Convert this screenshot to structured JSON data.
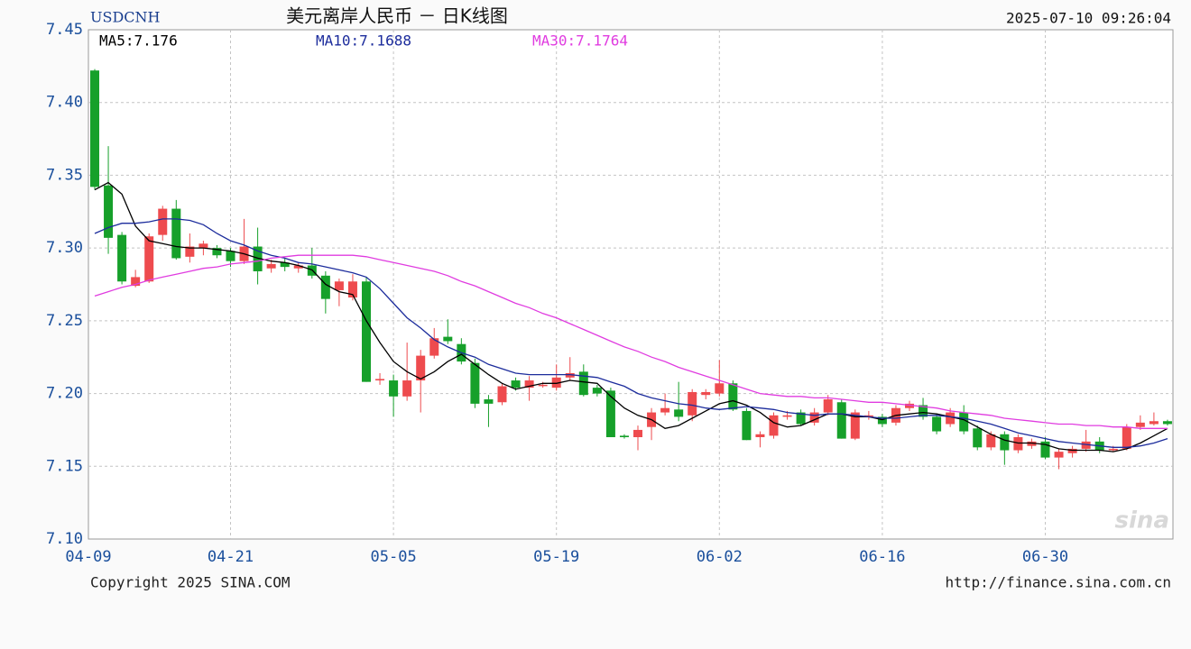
{
  "chart_data": {
    "type": "candlestick",
    "title": "美元离岸人民币 － 日K线图",
    "symbol": "USDCNH",
    "timestamp": "2025-07-10 09:26:04",
    "copyright": "Copyright 2025 SINA.COM",
    "url": "http://finance.sina.com.cn",
    "watermark": "sina",
    "categories": [
      "04-09",
      null,
      null,
      null,
      null,
      null,
      null,
      null,
      null,
      null,
      "04-21",
      null,
      null,
      null,
      null,
      null,
      null,
      null,
      null,
      null,
      null,
      null,
      "05-05",
      null,
      null,
      null,
      null,
      null,
      null,
      null,
      null,
      null,
      null,
      null,
      "05-19",
      null,
      null,
      null,
      null,
      null,
      null,
      null,
      null,
      null,
      null,
      null,
      "06-02",
      null,
      null,
      null,
      null,
      null,
      null,
      null,
      null,
      null,
      null,
      null,
      "06-16",
      null,
      null,
      null,
      null,
      null,
      null,
      null,
      null,
      null,
      null,
      null,
      "06-30",
      null,
      null,
      null,
      null,
      null,
      null,
      null,
      null,
      null
    ],
    "open": [
      7.422,
      7.343,
      7.309,
      7.274,
      7.277,
      7.309,
      7.327,
      7.294,
      7.3,
      7.3,
      7.298,
      7.291,
      7.301,
      7.286,
      7.29,
      7.286,
      7.288,
      7.281,
      7.271,
      7.266,
      7.277,
      7.209,
      7.209,
      7.198,
      7.209,
      7.226,
      7.239,
      7.234,
      7.221,
      7.196,
      7.194,
      7.209,
      7.204,
      7.206,
      7.204,
      7.211,
      7.215,
      7.204,
      7.202,
      7.171,
      7.17,
      7.177,
      7.187,
      7.189,
      7.185,
      7.199,
      7.2,
      7.207,
      7.188,
      7.17,
      7.171,
      7.184,
      7.187,
      7.18,
      7.187,
      7.194,
      7.169,
      7.184,
      7.184,
      7.18,
      7.19,
      7.192,
      7.184,
      7.179,
      7.187,
      7.176,
      7.163,
      7.172,
      7.161,
      7.164,
      7.167,
      7.156,
      7.159,
      7.162,
      7.167,
      7.161,
      7.162,
      7.177,
      7.179,
      7.181
    ],
    "high": [
      7.423,
      7.37,
      7.311,
      7.285,
      7.31,
      7.329,
      7.333,
      7.31,
      7.305,
      7.302,
      7.3,
      7.32,
      7.314,
      7.292,
      7.293,
      7.29,
      7.3,
      7.284,
      7.279,
      7.282,
      7.28,
      7.214,
      7.213,
      7.235,
      7.23,
      7.245,
      7.251,
      7.238,
      7.224,
      7.199,
      7.207,
      7.211,
      7.212,
      7.208,
      7.22,
      7.225,
      7.22,
      7.206,
      7.204,
      7.172,
      7.178,
      7.19,
      7.2,
      7.208,
      7.203,
      7.203,
      7.223,
      7.209,
      7.19,
      7.174,
      7.187,
      7.188,
      7.189,
      7.19,
      7.199,
      7.196,
      7.189,
      7.188,
      7.186,
      7.192,
      7.195,
      7.197,
      7.186,
      7.19,
      7.192,
      7.178,
      7.174,
      7.174,
      7.172,
      7.169,
      7.17,
      7.162,
      7.164,
      7.175,
      7.17,
      7.164,
      7.179,
      7.185,
      7.187,
      7.182
    ],
    "low": [
      7.34,
      7.296,
      7.275,
      7.273,
      7.276,
      7.305,
      7.292,
      7.29,
      7.295,
      7.293,
      7.287,
      7.289,
      7.275,
      7.283,
      7.284,
      7.283,
      7.279,
      7.255,
      7.26,
      7.264,
      7.208,
      7.206,
      7.184,
      7.195,
      7.187,
      7.224,
      7.234,
      7.22,
      7.19,
      7.177,
      7.192,
      7.202,
      7.195,
      7.204,
      7.202,
      7.209,
      7.198,
      7.198,
      7.17,
      7.169,
      7.161,
      7.168,
      7.185,
      7.181,
      7.181,
      7.196,
      7.198,
      7.188,
      7.168,
      7.163,
      7.169,
      7.182,
      7.178,
      7.178,
      7.185,
      7.169,
      7.168,
      7.182,
      7.177,
      7.178,
      7.188,
      7.182,
      7.172,
      7.177,
      7.172,
      7.161,
      7.161,
      7.151,
      7.159,
      7.162,
      7.155,
      7.148,
      7.156,
      7.16,
      7.159,
      7.16,
      7.161,
      7.175,
      7.178,
      7.178
    ],
    "close": [
      7.342,
      7.307,
      7.277,
      7.28,
      7.308,
      7.327,
      7.293,
      7.301,
      7.303,
      7.295,
      7.291,
      7.301,
      7.284,
      7.289,
      7.287,
      7.288,
      7.281,
      7.265,
      7.277,
      7.277,
      7.208,
      7.21,
      7.198,
      7.209,
      7.226,
      7.238,
      7.236,
      7.222,
      7.193,
      7.193,
      7.205,
      7.204,
      7.209,
      7.206,
      7.211,
      7.214,
      7.199,
      7.2,
      7.17,
      7.17,
      7.175,
      7.187,
      7.19,
      7.184,
      7.201,
      7.201,
      7.207,
      7.189,
      7.168,
      7.172,
      7.185,
      7.185,
      7.179,
      7.187,
      7.196,
      7.169,
      7.187,
      7.185,
      7.179,
      7.19,
      7.193,
      7.184,
      7.174,
      7.187,
      7.174,
      7.163,
      7.172,
      7.161,
      7.17,
      7.167,
      7.156,
      7.16,
      7.162,
      7.167,
      7.161,
      7.162,
      7.177,
      7.18,
      7.181,
      7.179
    ],
    "up_color": "#ee4b4e",
    "down_color": "#16a02a",
    "series": [
      {
        "name": "MA5:7.176",
        "color": "#000000",
        "values": [
          7.34,
          7.345,
          7.337,
          7.315,
          7.305,
          7.303,
          7.301,
          7.3,
          7.3,
          7.299,
          7.298,
          7.296,
          7.293,
          7.291,
          7.29,
          7.288,
          7.285,
          7.275,
          7.27,
          7.268,
          7.25,
          7.235,
          7.222,
          7.215,
          7.21,
          7.215,
          7.222,
          7.227,
          7.22,
          7.213,
          7.207,
          7.203,
          7.205,
          7.207,
          7.207,
          7.209,
          7.208,
          7.207,
          7.198,
          7.19,
          7.185,
          7.182,
          7.176,
          7.178,
          7.183,
          7.188,
          7.193,
          7.195,
          7.192,
          7.187,
          7.18,
          7.177,
          7.178,
          7.182,
          7.186,
          7.186,
          7.184,
          7.184,
          7.182,
          7.185,
          7.186,
          7.187,
          7.186,
          7.184,
          7.182,
          7.177,
          7.172,
          7.168,
          7.166,
          7.166,
          7.165,
          7.162,
          7.161,
          7.161,
          7.161,
          7.16,
          7.162,
          7.166,
          7.171,
          7.176
        ]
      },
      {
        "name": "MA10:7.1688",
        "color": "#1c2c9c",
        "values": [
          7.31,
          7.314,
          7.317,
          7.317,
          7.318,
          7.32,
          7.32,
          7.319,
          7.316,
          7.31,
          7.305,
          7.302,
          7.298,
          7.295,
          7.293,
          7.29,
          7.289,
          7.287,
          7.285,
          7.283,
          7.28,
          7.272,
          7.262,
          7.252,
          7.245,
          7.237,
          7.232,
          7.228,
          7.225,
          7.22,
          7.217,
          7.214,
          7.213,
          7.213,
          7.213,
          7.213,
          7.212,
          7.211,
          7.208,
          7.205,
          7.2,
          7.197,
          7.195,
          7.193,
          7.192,
          7.19,
          7.189,
          7.19,
          7.191,
          7.19,
          7.189,
          7.187,
          7.186,
          7.185,
          7.186,
          7.186,
          7.185,
          7.184,
          7.183,
          7.183,
          7.184,
          7.185,
          7.185,
          7.184,
          7.183,
          7.181,
          7.179,
          7.176,
          7.173,
          7.171,
          7.169,
          7.167,
          7.166,
          7.165,
          7.164,
          7.163,
          7.163,
          7.164,
          7.166,
          7.169
        ]
      },
      {
        "name": "MA30:7.1764",
        "color": "#e03ce0",
        "values": [
          7.267,
          7.27,
          7.273,
          7.275,
          7.278,
          7.28,
          7.282,
          7.284,
          7.286,
          7.287,
          7.289,
          7.29,
          7.291,
          7.293,
          7.294,
          7.295,
          7.295,
          7.295,
          7.295,
          7.295,
          7.294,
          7.292,
          7.29,
          7.288,
          7.286,
          7.284,
          7.281,
          7.277,
          7.274,
          7.27,
          7.266,
          7.262,
          7.259,
          7.255,
          7.252,
          7.248,
          7.244,
          7.24,
          7.236,
          7.232,
          7.229,
          7.225,
          7.222,
          7.218,
          7.215,
          7.212,
          7.209,
          7.206,
          7.203,
          7.2,
          7.199,
          7.198,
          7.198,
          7.197,
          7.197,
          7.196,
          7.195,
          7.194,
          7.194,
          7.193,
          7.192,
          7.191,
          7.19,
          7.188,
          7.187,
          7.186,
          7.185,
          7.183,
          7.182,
          7.181,
          7.18,
          7.179,
          7.179,
          7.178,
          7.178,
          7.177,
          7.177,
          7.176,
          7.176,
          7.176
        ]
      }
    ],
    "ylim": [
      7.1,
      7.45
    ],
    "yticks": [
      {
        "value": 7.1,
        "label": "7.10"
      },
      7.15,
      {
        "value": 7.2,
        "label": "7.20"
      },
      7.25,
      {
        "value": 7.3,
        "label": "7.30"
      },
      7.35,
      {
        "value": 7.4,
        "label": "7.40"
      },
      7.45
    ],
    "grid": true
  }
}
